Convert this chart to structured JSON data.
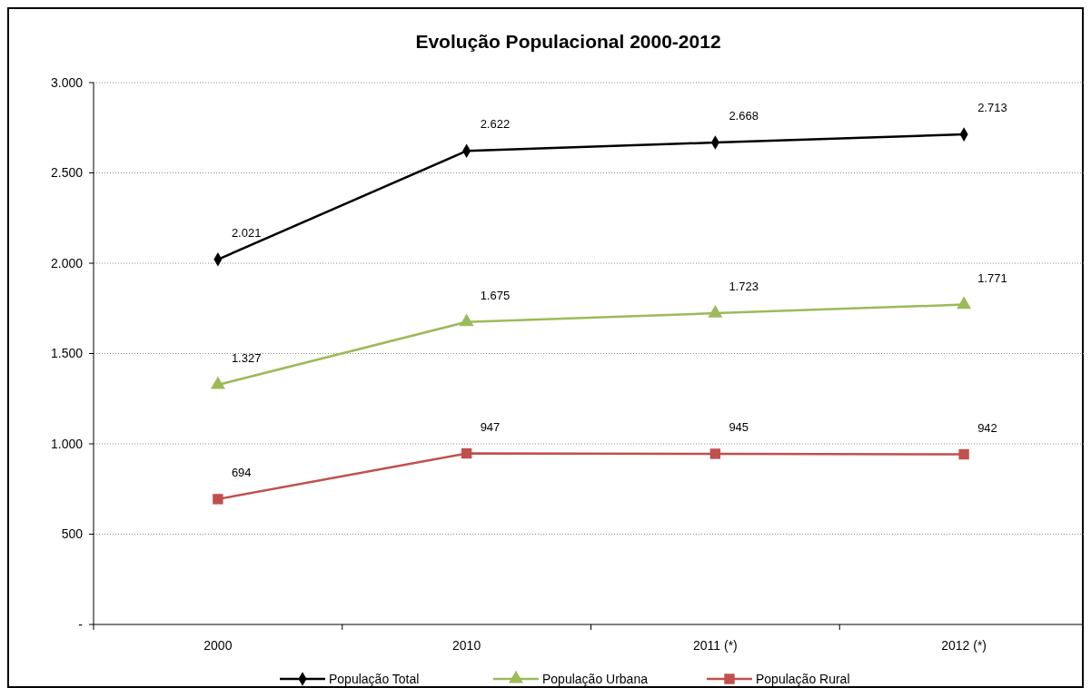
{
  "chart_data": {
    "type": "line",
    "title": "Evolução Populacional 2000-2012",
    "categories": [
      "2000",
      "2010",
      "2011 (*)",
      "2012 (*)"
    ],
    "ylim": [
      0,
      3000
    ],
    "yticks": [
      {
        "value": 0,
        "label": "-"
      },
      {
        "value": 500,
        "label": "500"
      },
      {
        "value": 1000,
        "label": "1.000"
      },
      {
        "value": 1500,
        "label": "1.500"
      },
      {
        "value": 2000,
        "label": "2.000"
      },
      {
        "value": 2500,
        "label": "2.500"
      },
      {
        "value": 3000,
        "label": "3.000"
      }
    ],
    "grid": "y",
    "legend": "bottom",
    "series": [
      {
        "name": "População Total",
        "color": "#000000",
        "marker": "diamond",
        "values": [
          2021,
          2622,
          2668,
          2713
        ],
        "value_labels": [
          "2.021",
          "2.622",
          "2.668",
          "2.713"
        ]
      },
      {
        "name": "População Urbana",
        "color": "#9bbb59",
        "marker": "triangle",
        "values": [
          1327,
          1675,
          1723,
          1771
        ],
        "value_labels": [
          "1.327",
          "1.675",
          "1.723",
          "1.771"
        ]
      },
      {
        "name": "População Rural",
        "color": "#c0504d",
        "marker": "square",
        "values": [
          694,
          947,
          945,
          942
        ],
        "value_labels": [
          "694",
          "947",
          "945",
          "942"
        ]
      }
    ]
  }
}
